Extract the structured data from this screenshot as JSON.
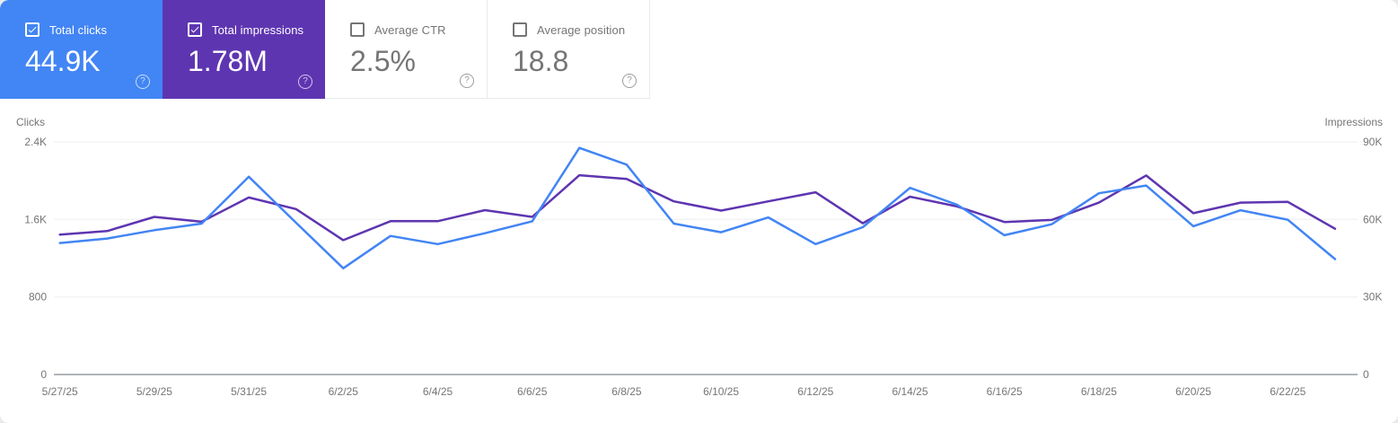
{
  "cards": [
    {
      "label": "Total clicks",
      "value": "44.9K",
      "checked": true,
      "bg": "#4285F4",
      "text_color": "#ffffff"
    },
    {
      "label": "Total impressions",
      "value": "1.78M",
      "checked": true,
      "bg": "#5E35B1",
      "text_color": "#ffffff"
    },
    {
      "label": "Average CTR",
      "value": "2.5%",
      "checked": false,
      "bg": "#ffffff",
      "text_color": "#757575"
    },
    {
      "label": "Average position",
      "value": "18.8",
      "checked": false,
      "bg": "#ffffff",
      "text_color": "#757575"
    }
  ],
  "chart_data": {
    "type": "line",
    "x": [
      "5/27/25",
      "5/28/25",
      "5/29/25",
      "5/30/25",
      "5/31/25",
      "6/1/25",
      "6/2/25",
      "6/3/25",
      "6/4/25",
      "6/5/25",
      "6/6/25",
      "6/7/25",
      "6/8/25",
      "6/9/25",
      "6/10/25",
      "6/11/25",
      "6/12/25",
      "6/13/25",
      "6/14/25",
      "6/15/25",
      "6/16/25",
      "6/17/25",
      "6/18/25",
      "6/19/25",
      "6/20/25",
      "6/21/25",
      "6/22/25",
      "6/23/25"
    ],
    "x_tick_labels": [
      "5/27/25",
      "5/29/25",
      "5/31/25",
      "6/2/25",
      "6/4/25",
      "6/6/25",
      "6/8/25",
      "6/10/25",
      "6/12/25",
      "6/14/25",
      "6/16/25",
      "6/18/25",
      "6/20/25",
      "6/22/25"
    ],
    "series": [
      {
        "name": "Impressions",
        "axis": "right",
        "color": "#5E35B1",
        "values": [
          54100,
          55500,
          61000,
          59100,
          68500,
          64000,
          52000,
          59300,
          59300,
          63600,
          61000,
          77100,
          75700,
          67000,
          63400,
          67000,
          70500,
          58500,
          68800,
          65000,
          59000,
          59800,
          66500,
          77000,
          62400,
          66500,
          66800,
          56400
        ]
      },
      {
        "name": "Clicks",
        "axis": "left",
        "color": "#4285F4",
        "values": [
          1357,
          1403,
          1489,
          1557,
          2040,
          1566,
          1096,
          1430,
          1345,
          1458,
          1581,
          2338,
          2166,
          1557,
          1468,
          1621,
          1345,
          1520,
          1926,
          1751,
          1437,
          1550,
          1870,
          1950,
          1530,
          1695,
          1597,
          1191
        ]
      }
    ],
    "left_axis": {
      "title": "Clicks",
      "min": 0,
      "max": 2400,
      "ticks": [
        "2.4K",
        "1.6K",
        "800",
        "0"
      ]
    },
    "right_axis": {
      "title": "Impressions",
      "min": 0,
      "max": 90000,
      "ticks": [
        "90K",
        "60K",
        "30K",
        "0"
      ]
    },
    "grid": "horizontal",
    "legend": "none"
  },
  "colors": {
    "grid_line": "#eeeeee",
    "axis_line": "#b1b4b8",
    "tick_text": "#757575"
  }
}
